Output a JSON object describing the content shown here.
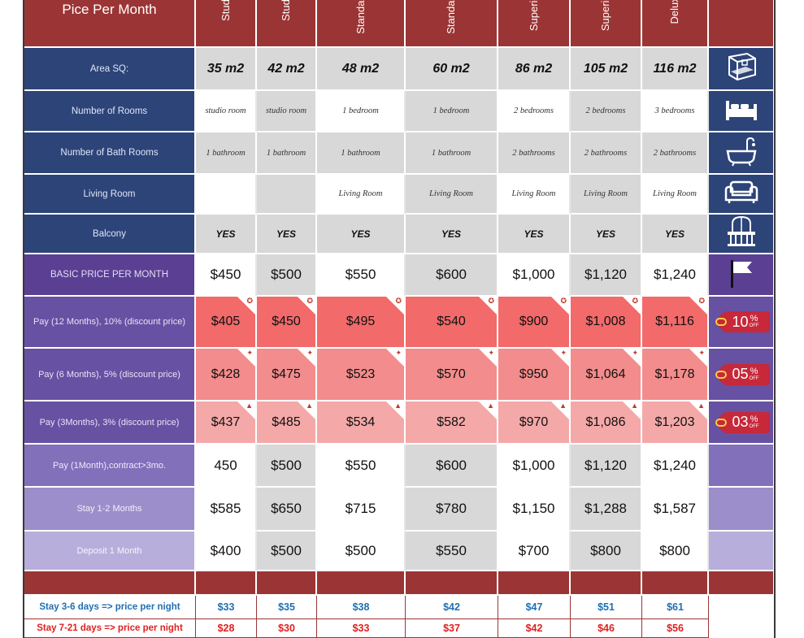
{
  "title": "Pice Per Month",
  "columns": [
    "Studio",
    "Studio",
    "Standard",
    "Standard",
    "Superior",
    "Superior",
    "Deluxe"
  ],
  "rows": [
    {
      "label": "Area SQ:",
      "style": "navy",
      "kind": "area",
      "icon": "room-3d-icon",
      "values": [
        "35 m2",
        "42 m2",
        "48 m2",
        "60 m2",
        "86 m2",
        "105 m2",
        "116 m2"
      ]
    },
    {
      "label": "Number of Rooms",
      "style": "navy",
      "kind": "text",
      "icon": "bed-icon",
      "values": [
        "studio room",
        "studio room",
        "1 bedroom",
        "1 bedroom",
        "2 bedrooms",
        "2 bedrooms",
        "3 bedrooms"
      ]
    },
    {
      "label": "Number of Bath Rooms",
      "style": "navy",
      "kind": "text",
      "icon": "bathtub-icon",
      "values": [
        "1 bathroom",
        "1 bathroom",
        "1 bathroom",
        "1 bathroom",
        "2 bathrooms",
        "2 bathrooms",
        "2 bathrooms"
      ]
    },
    {
      "label": "Living Room",
      "style": "navy",
      "kind": "text",
      "icon": "sofa-icon",
      "values": [
        "",
        "",
        "Living Room",
        "Living Room",
        "Living Room",
        "Living Room",
        "Living Room"
      ]
    },
    {
      "label": "Balcony",
      "style": "navy",
      "kind": "yes",
      "icon": "balcony-icon",
      "values": [
        "YES",
        "YES",
        "YES",
        "YES",
        "YES",
        "YES",
        "YES"
      ]
    },
    {
      "label": "BASIC PRICE PER MONTH",
      "style": "purple",
      "kind": "price",
      "icon": "flag-icon",
      "values": [
        "$450",
        "$500",
        "$550",
        "$600",
        "$1,000",
        "$1,120",
        "$1,240"
      ]
    },
    {
      "label": "Pay (12 Months), 10% (discount price)",
      "style": "p1",
      "kind": "d10",
      "icon": "tag",
      "tag_num": "10",
      "tag_pct": "%",
      "tag_off": "OFF",
      "mark": "✪",
      "values": [
        "$405",
        "$450",
        "$495",
        "$540",
        "$900",
        "$1,008",
        "$1,116"
      ]
    },
    {
      "label": "Pay (6 Months), 5% (discount price)",
      "style": "p1",
      "kind": "d05",
      "icon": "tag",
      "tag_num": "05",
      "tag_pct": "%",
      "tag_off": "OFF",
      "mark": "✦",
      "values": [
        "$428",
        "$475",
        "$523",
        "$570",
        "$950",
        "$1,064",
        "$1,178"
      ]
    },
    {
      "label": "Pay (3Months), 3% (discount price)",
      "style": "p1",
      "kind": "d03",
      "icon": "tag",
      "tag_num": "03",
      "tag_pct": "%",
      "tag_off": "OFF",
      "mark": "▲",
      "values": [
        "$437",
        "$485",
        "$534",
        "$582",
        "$970",
        "$1,086",
        "$1,203"
      ]
    },
    {
      "label": "Pay (1Month),contract>3mo.",
      "style": "p2",
      "kind": "price",
      "icon": "none",
      "values": [
        "450",
        "$500",
        "$550",
        "$600",
        "$1,000",
        "$1,120",
        "$1,240"
      ]
    },
    {
      "label": "Stay 1-2 Months",
      "style": "p3",
      "kind": "price",
      "icon": "none",
      "values": [
        "$585",
        "$650",
        "$715",
        "$780",
        "$1,150",
        "$1,288",
        "$1,587"
      ]
    },
    {
      "label": "Deposit 1 Month",
      "style": "p4",
      "kind": "price",
      "icon": "none",
      "values": [
        "$400",
        "$500",
        "$500",
        "$550",
        "$700",
        "$800",
        "$800"
      ]
    }
  ],
  "nightly": [
    {
      "label": "Stay  3-6 days => price per night",
      "color": "blue",
      "values": [
        "$33",
        "$35",
        "$38",
        "$42",
        "$47",
        "$51",
        "$61"
      ]
    },
    {
      "label": "Stay  7-21 days => price per night",
      "color": "red",
      "values": [
        "$28",
        "$30",
        "$33",
        "$37",
        "$42",
        "$46",
        "$56"
      ]
    }
  ],
  "colors": {
    "header": "#9b3535",
    "navy": "#2d4479",
    "purple": "#5a3f92",
    "tag": "#c7283a"
  }
}
